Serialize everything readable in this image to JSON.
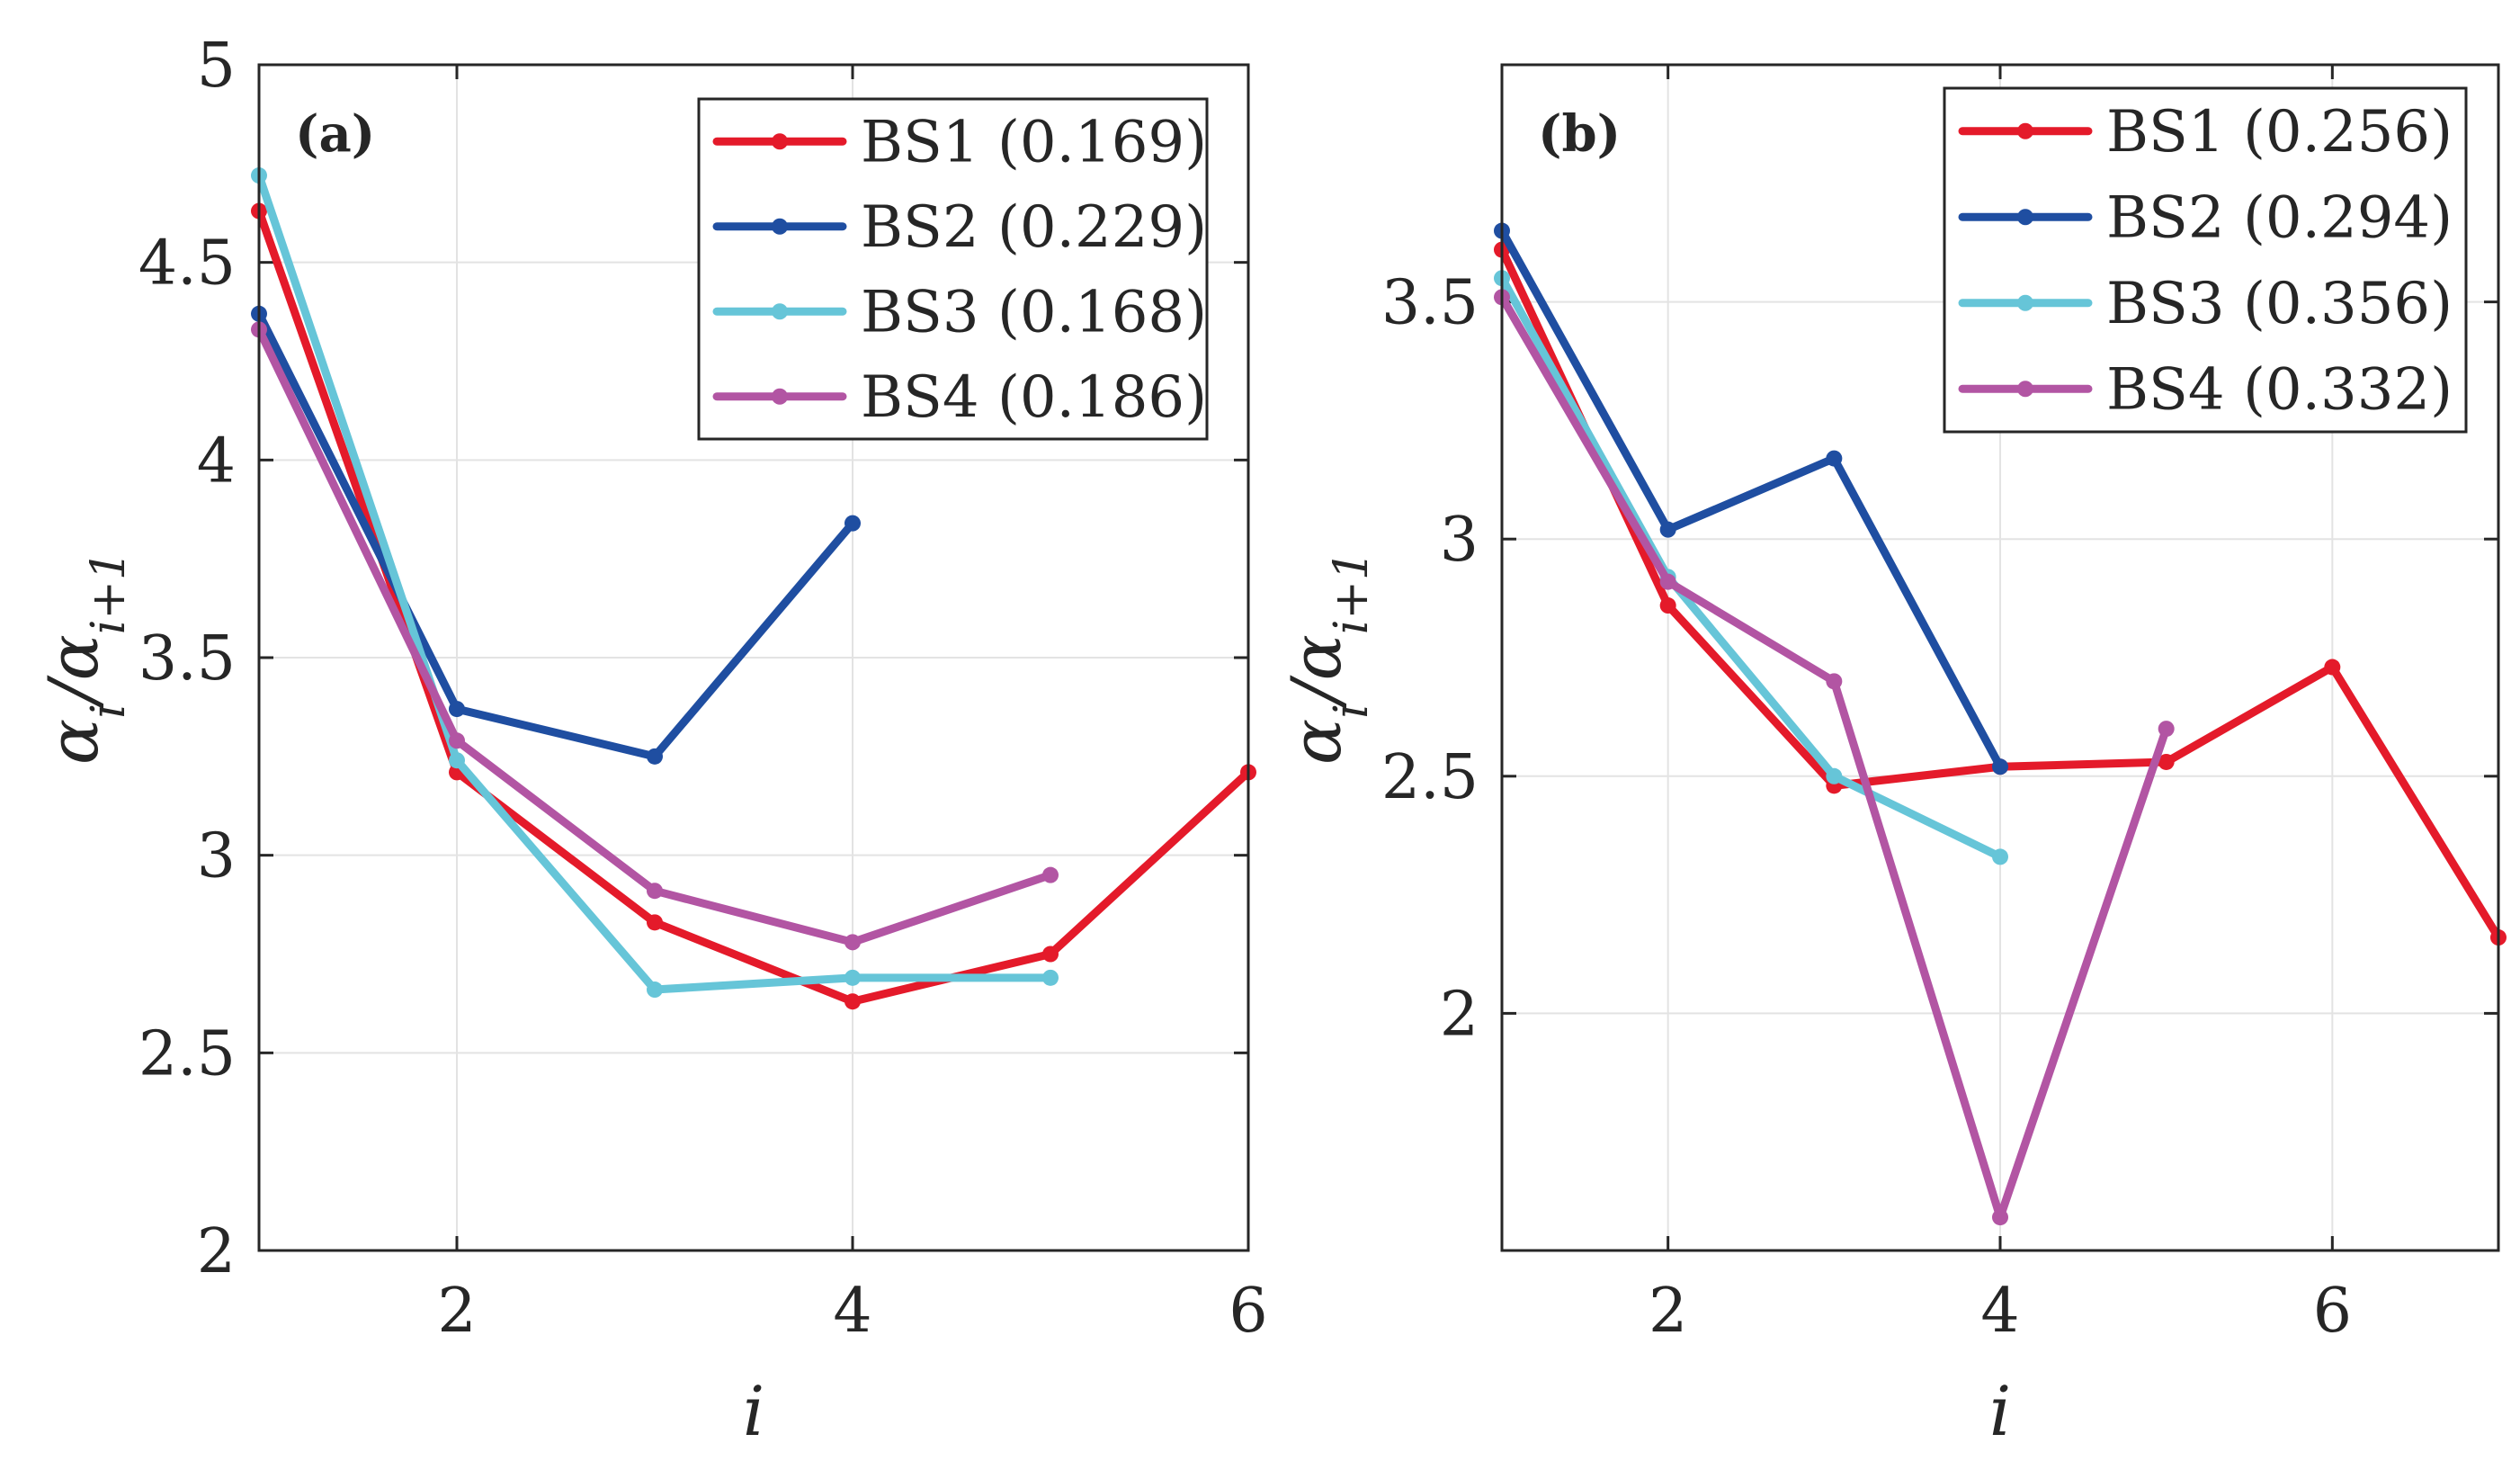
{
  "chart_data": [
    {
      "type": "line",
      "panel_label": "(a)",
      "xlabel": "i",
      "ylabel": "αi/αi+1",
      "xlim": [
        1,
        6
      ],
      "ylim": [
        2,
        5
      ],
      "xticks": [
        2,
        4,
        6
      ],
      "yticks": [
        2,
        2.5,
        3,
        3.5,
        4,
        4.5,
        5
      ],
      "ytick_labels": [
        "2",
        "2.5",
        "3",
        "3.5",
        "4",
        "4.5",
        "5"
      ],
      "grid": true,
      "legend_position": "top-right",
      "series": [
        {
          "name": "BS1 (0.169)",
          "color": "#e41a2a",
          "x": [
            1,
            2,
            3,
            4,
            5,
            6
          ],
          "values": [
            4.63,
            3.21,
            2.83,
            2.63,
            2.75,
            3.21
          ]
        },
        {
          "name": "BS2 (0.229)",
          "color": "#1f4ea1",
          "x": [
            1,
            2,
            3,
            4
          ],
          "values": [
            4.37,
            3.37,
            3.25,
            3.84
          ]
        },
        {
          "name": "BS3 (0.168)",
          "color": "#66c5d8",
          "x": [
            1,
            2,
            3,
            4,
            5
          ],
          "values": [
            4.72,
            3.24,
            2.66,
            2.69,
            2.69
          ]
        },
        {
          "name": "BS4 (0.186)",
          "color": "#b255a3",
          "x": [
            1,
            2,
            3,
            4,
            5
          ],
          "values": [
            4.33,
            3.29,
            2.91,
            2.78,
            2.95
          ]
        }
      ]
    },
    {
      "type": "line",
      "panel_label": "(b)",
      "xlabel": "i",
      "ylabel": "αi/αi+1",
      "xlim": [
        1,
        7
      ],
      "ylim": [
        1.5,
        4
      ],
      "xticks": [
        2,
        4,
        6
      ],
      "yticks": [
        2,
        2.5,
        3,
        3.5
      ],
      "ytick_labels": [
        "2",
        "2.5",
        "3",
        "3.5"
      ],
      "grid": true,
      "legend_position": "top-right",
      "series": [
        {
          "name": "BS1 (0.256)",
          "color": "#e41a2a",
          "x": [
            1,
            2,
            3,
            4,
            5,
            6,
            7
          ],
          "values": [
            3.61,
            2.86,
            2.48,
            2.52,
            2.53,
            2.73,
            2.16
          ]
        },
        {
          "name": "BS2 (0.294)",
          "color": "#1f4ea1",
          "x": [
            1,
            2,
            3,
            4
          ],
          "values": [
            3.65,
            3.02,
            3.17,
            2.52
          ]
        },
        {
          "name": "BS3 (0.356)",
          "color": "#66c5d8",
          "x": [
            1,
            2,
            3,
            4
          ],
          "values": [
            3.55,
            2.92,
            2.5,
            2.33
          ]
        },
        {
          "name": "BS4 (0.332)",
          "color": "#b255a3",
          "x": [
            1,
            2,
            3,
            4,
            5
          ],
          "values": [
            3.51,
            2.91,
            2.7,
            1.57,
            2.6
          ]
        }
      ]
    }
  ]
}
